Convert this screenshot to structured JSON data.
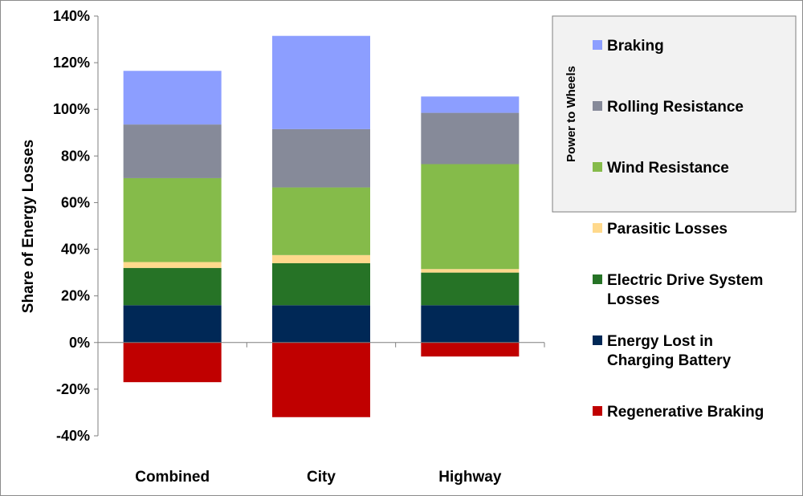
{
  "chart_data": {
    "type": "bar",
    "stacked": true,
    "ylabel": "Share of Energy Losses",
    "xlabel": "",
    "ylim": [
      -40,
      140
    ],
    "yticks": [
      -40,
      -20,
      0,
      20,
      40,
      60,
      80,
      100,
      120,
      140
    ],
    "ytick_labels": [
      "-40%",
      "-20%",
      "0%",
      "20%",
      "40%",
      "60%",
      "80%",
      "100%",
      "120%",
      "140%"
    ],
    "categories": [
      "Combined",
      "City",
      "Highway"
    ],
    "series": [
      {
        "name": "Energy Lost in Charging Battery",
        "color": "#002856",
        "values": [
          16,
          16,
          16
        ]
      },
      {
        "name": "Electric Drive System Losses",
        "color": "#267326",
        "values": [
          16,
          18,
          14
        ]
      },
      {
        "name": "Parasitic Losses",
        "color": "#ffd98c",
        "values": [
          2.5,
          3.5,
          1.5
        ]
      },
      {
        "name": "Wind Resistance",
        "color": "#85bb4a",
        "values": [
          36,
          29,
          45
        ]
      },
      {
        "name": "Rolling Resistance",
        "color": "#868a99",
        "values": [
          23,
          25,
          22
        ]
      },
      {
        "name": "Braking",
        "color": "#8c9eff",
        "values": [
          23,
          40,
          7
        ]
      },
      {
        "name": "Regenerative Braking",
        "color": "#c00000",
        "values": [
          -17,
          -32,
          -6
        ]
      }
    ],
    "legend": {
      "position": "right",
      "group_label": "Power to Wheels",
      "items": [
        {
          "label": "Braking",
          "color": "#8c9eff"
        },
        {
          "label": "Rolling Resistance",
          "color": "#868a99"
        },
        {
          "label": "Wind Resistance",
          "color": "#85bb4a"
        },
        {
          "label": "Parasitic Losses",
          "color": "#ffd98c"
        },
        {
          "label": "Electric Drive System Losses",
          "lines": [
            "Electric Drive System",
            "Losses"
          ],
          "color": "#267326"
        },
        {
          "label": "Energy Lost in Charging Battery",
          "lines": [
            "Energy Lost in",
            "Charging Battery"
          ],
          "color": "#002856"
        },
        {
          "label": "Regenerative Braking",
          "color": "#c00000"
        }
      ]
    }
  }
}
